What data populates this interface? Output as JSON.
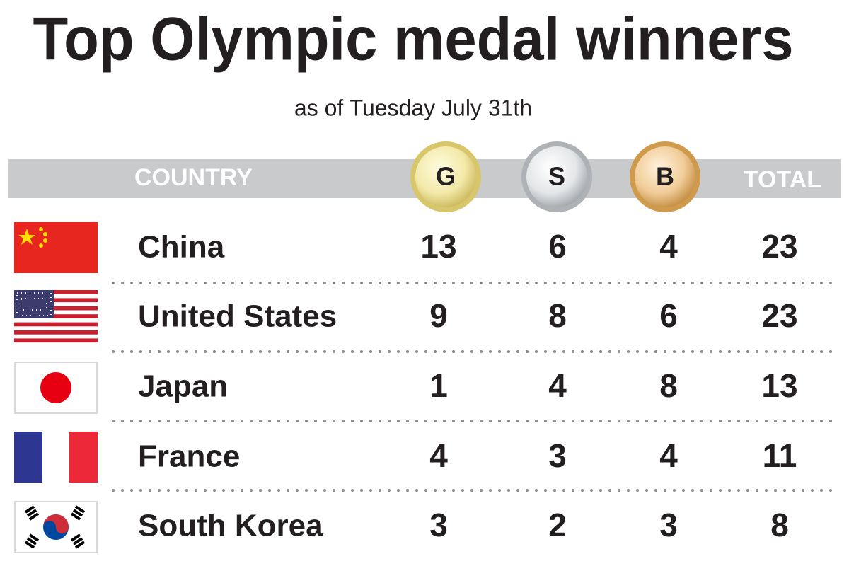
{
  "header": {
    "title": "Top Olympic medal winners",
    "subtitle": "as of Tuesday July 31th"
  },
  "table": {
    "columns": [
      "COUNTRY",
      "G",
      "S",
      "B",
      "TOTAL"
    ],
    "rows": [
      [
        "China",
        13,
        6,
        4,
        23
      ],
      [
        "United States",
        9,
        8,
        6,
        23
      ],
      [
        "Japan",
        1,
        4,
        8,
        13
      ],
      [
        "France",
        4,
        3,
        4,
        11
      ],
      [
        "South Korea",
        3,
        2,
        3,
        8
      ]
    ]
  }
}
